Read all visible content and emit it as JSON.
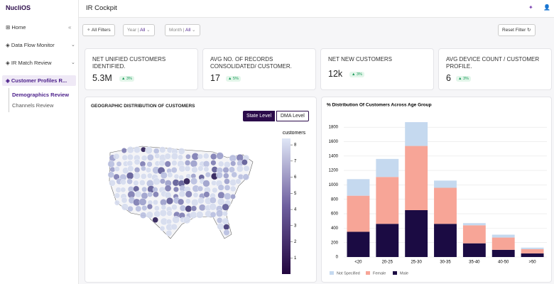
{
  "sidebar": {
    "logo": "NucliOS",
    "items": [
      "Home",
      "Data Flow Monitor",
      "IR Match Review",
      "Customer Profiles R..."
    ],
    "subitems": [
      "Demographics Review",
      "Channels Review"
    ]
  },
  "header": {
    "title": "IR Cockpit"
  },
  "filters": {
    "all_filters": "All Filters",
    "year_label": "Year |",
    "year_value": "All",
    "month_label": "Month |",
    "month_value": "All",
    "reset": "Reset Filter"
  },
  "kpis": [
    {
      "label": "NET UNIFIED CUSTOMERS IDENTIFIED.",
      "value": "5.3M",
      "change": "3%"
    },
    {
      "label": "AVG NO. OF RECORDS CONSOLIDATED/ CUSTOMER.",
      "value": "17",
      "change": "5%"
    },
    {
      "label": "NET NEW CUSTOMERS",
      "value": "12k",
      "change": "3%"
    },
    {
      "label": "AVG DEVICE COUNT / CUSTOMER PROFILE.",
      "value": "6",
      "change": "3%"
    }
  ],
  "map": {
    "title": "GEOGRAPHIC DISTRIBUTION OF CUSTOMERS",
    "buttons": [
      "State Level",
      "DMA Level"
    ],
    "legend_title": "customers",
    "range": [
      0,
      8.4
    ],
    "ticks": [
      1,
      2,
      3,
      4,
      5,
      6,
      7,
      8
    ]
  },
  "chart_data": {
    "type": "bar",
    "stacked": true,
    "title": "% Distribution Of Customers Across Age Group",
    "categories": [
      "<20",
      "20-25",
      "25-30",
      "30-35",
      "35-40",
      "40-50",
      ">50"
    ],
    "series": [
      {
        "name": "Male",
        "color": "#1b0b43",
        "values": [
          350,
          460,
          650,
          460,
          190,
          100,
          50
        ]
      },
      {
        "name": "Female",
        "color": "#f7a597",
        "values": [
          500,
          650,
          890,
          500,
          250,
          170,
          60
        ]
      },
      {
        "name": "Not Specified",
        "color": "#c5d9ef",
        "values": [
          230,
          250,
          330,
          100,
          30,
          40,
          20
        ]
      }
    ],
    "ylim": [
      0,
      1900
    ],
    "yticks": [
      0,
      200,
      400,
      600,
      800,
      1000,
      1200,
      1400,
      1600,
      1800
    ],
    "grid": true
  }
}
